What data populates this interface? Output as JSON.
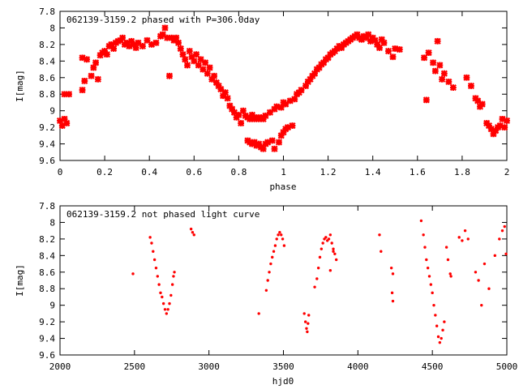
{
  "chart_data": [
    {
      "type": "scatter",
      "title": "062139-3159.2 phased with P=306.0day",
      "xlabel": "phase",
      "ylabel": "I[mag]",
      "xlim": [
        0,
        2
      ],
      "ylim": [
        7.8,
        9.6
      ],
      "y_inverted": true,
      "xticks": [
        "0",
        "0.2",
        "0.4",
        "0.6",
        "0.8",
        "1",
        "1.2",
        "1.4",
        "1.6",
        "1.8",
        "2"
      ],
      "yticks": [
        "7.8",
        "8",
        "8.2",
        "8.4",
        "8.6",
        "8.8",
        "9",
        "9.2",
        "9.4",
        "9.6"
      ],
      "marker_color": "#ff0000",
      "marker": "filled-star",
      "points": [
        [
          0.0,
          9.12
        ],
        [
          0.01,
          9.18
        ],
        [
          0.02,
          9.1
        ],
        [
          0.03,
          9.15
        ],
        [
          0.02,
          8.8
        ],
        [
          0.04,
          8.8
        ],
        [
          0.1,
          8.75
        ],
        [
          0.11,
          8.64
        ],
        [
          0.1,
          8.36
        ],
        [
          0.12,
          8.38
        ],
        [
          0.14,
          8.58
        ],
        [
          0.15,
          8.48
        ],
        [
          0.17,
          8.62
        ],
        [
          0.16,
          8.42
        ],
        [
          0.18,
          8.33
        ],
        [
          0.19,
          8.3
        ],
        [
          0.2,
          8.28
        ],
        [
          0.21,
          8.32
        ],
        [
          0.22,
          8.22
        ],
        [
          0.23,
          8.2
        ],
        [
          0.24,
          8.25
        ],
        [
          0.25,
          8.18
        ],
        [
          0.26,
          8.16
        ],
        [
          0.27,
          8.15
        ],
        [
          0.28,
          8.12
        ],
        [
          0.29,
          8.2
        ],
        [
          0.3,
          8.18
        ],
        [
          0.31,
          8.22
        ],
        [
          0.32,
          8.16
        ],
        [
          0.33,
          8.2
        ],
        [
          0.34,
          8.24
        ],
        [
          0.35,
          8.18
        ],
        [
          0.37,
          8.22
        ],
        [
          0.39,
          8.15
        ],
        [
          0.41,
          8.2
        ],
        [
          0.43,
          8.18
        ],
        [
          0.45,
          8.1
        ],
        [
          0.46,
          8.08
        ],
        [
          0.47,
          8.0
        ],
        [
          0.48,
          8.12
        ],
        [
          0.49,
          8.58
        ],
        [
          0.5,
          8.12
        ],
        [
          0.51,
          8.15
        ],
        [
          0.52,
          8.12
        ],
        [
          0.53,
          8.18
        ],
        [
          0.54,
          8.25
        ],
        [
          0.55,
          8.32
        ],
        [
          0.56,
          8.38
        ],
        [
          0.57,
          8.45
        ],
        [
          0.58,
          8.28
        ],
        [
          0.59,
          8.35
        ],
        [
          0.6,
          8.4
        ],
        [
          0.61,
          8.32
        ],
        [
          0.62,
          8.45
        ],
        [
          0.63,
          8.38
        ],
        [
          0.64,
          8.5
        ],
        [
          0.65,
          8.42
        ],
        [
          0.66,
          8.55
        ],
        [
          0.67,
          8.48
        ],
        [
          0.68,
          8.62
        ],
        [
          0.69,
          8.58
        ],
        [
          0.7,
          8.66
        ],
        [
          0.71,
          8.7
        ],
        [
          0.72,
          8.74
        ],
        [
          0.73,
          8.82
        ],
        [
          0.74,
          8.78
        ],
        [
          0.75,
          8.85
        ],
        [
          0.76,
          8.94
        ],
        [
          0.77,
          8.98
        ],
        [
          0.78,
          9.02
        ],
        [
          0.79,
          9.08
        ],
        [
          0.8,
          9.05
        ],
        [
          0.81,
          9.15
        ],
        [
          0.82,
          9.0
        ],
        [
          0.83,
          9.06
        ],
        [
          0.84,
          9.08
        ],
        [
          0.85,
          9.1
        ],
        [
          0.86,
          9.05
        ],
        [
          0.87,
          9.1
        ],
        [
          0.88,
          9.08
        ],
        [
          0.89,
          9.1
        ],
        [
          0.9,
          9.08
        ],
        [
          0.91,
          9.1
        ],
        [
          0.92,
          9.06
        ],
        [
          0.84,
          9.36
        ],
        [
          0.85,
          9.38
        ],
        [
          0.86,
          9.4
        ],
        [
          0.87,
          9.38
        ],
        [
          0.88,
          9.42
        ],
        [
          0.89,
          9.4
        ],
        [
          0.9,
          9.44
        ],
        [
          0.91,
          9.46
        ],
        [
          0.92,
          9.4
        ],
        [
          0.93,
          9.38
        ],
        [
          0.95,
          9.36
        ],
        [
          0.96,
          9.46
        ],
        [
          0.98,
          9.38
        ],
        [
          0.99,
          9.3
        ],
        [
          1.0,
          9.26
        ],
        [
          1.01,
          9.22
        ],
        [
          1.02,
          9.2
        ],
        [
          1.04,
          9.18
        ],
        [
          0.94,
          9.02
        ],
        [
          0.96,
          8.98
        ],
        [
          0.97,
          8.95
        ],
        [
          0.99,
          8.96
        ],
        [
          1.0,
          8.9
        ],
        [
          1.01,
          8.92
        ],
        [
          1.03,
          8.88
        ],
        [
          1.05,
          8.86
        ],
        [
          1.06,
          8.8
        ],
        [
          1.07,
          8.78
        ],
        [
          1.08,
          8.75
        ],
        [
          1.1,
          8.7
        ],
        [
          1.11,
          8.65
        ],
        [
          1.12,
          8.62
        ],
        [
          1.13,
          8.58
        ],
        [
          1.14,
          8.55
        ],
        [
          1.15,
          8.5
        ],
        [
          1.16,
          8.48
        ],
        [
          1.17,
          8.44
        ],
        [
          1.18,
          8.42
        ],
        [
          1.19,
          8.38
        ],
        [
          1.2,
          8.36
        ],
        [
          1.21,
          8.32
        ],
        [
          1.22,
          8.3
        ],
        [
          1.23,
          8.28
        ],
        [
          1.24,
          8.25
        ],
        [
          1.25,
          8.22
        ],
        [
          1.26,
          8.24
        ],
        [
          1.27,
          8.2
        ],
        [
          1.28,
          8.18
        ],
        [
          1.29,
          8.16
        ],
        [
          1.3,
          8.14
        ],
        [
          1.31,
          8.12
        ],
        [
          1.32,
          8.1
        ],
        [
          1.33,
          8.08
        ],
        [
          1.34,
          8.12
        ],
        [
          1.35,
          8.14
        ],
        [
          1.36,
          8.1
        ],
        [
          1.37,
          8.12
        ],
        [
          1.38,
          8.08
        ],
        [
          1.39,
          8.16
        ],
        [
          1.4,
          8.12
        ],
        [
          1.41,
          8.15
        ],
        [
          1.42,
          8.2
        ],
        [
          1.43,
          8.24
        ],
        [
          1.44,
          8.14
        ],
        [
          1.45,
          8.18
        ],
        [
          1.47,
          8.28
        ],
        [
          1.49,
          8.35
        ],
        [
          1.5,
          8.25
        ],
        [
          1.52,
          8.26
        ],
        [
          1.63,
          8.36
        ],
        [
          1.64,
          8.87
        ],
        [
          1.65,
          8.3
        ],
        [
          1.67,
          8.42
        ],
        [
          1.68,
          8.52
        ],
        [
          1.69,
          8.16
        ],
        [
          1.7,
          8.45
        ],
        [
          1.71,
          8.62
        ],
        [
          1.72,
          8.55
        ],
        [
          1.74,
          8.65
        ],
        [
          1.76,
          8.72
        ],
        [
          1.82,
          8.6
        ],
        [
          1.84,
          8.7
        ],
        [
          1.86,
          8.85
        ],
        [
          1.87,
          8.88
        ],
        [
          1.88,
          8.95
        ],
        [
          1.89,
          8.92
        ],
        [
          1.91,
          9.15
        ],
        [
          1.92,
          9.18
        ],
        [
          1.93,
          9.22
        ],
        [
          1.94,
          9.28
        ],
        [
          1.95,
          9.24
        ],
        [
          1.96,
          9.2
        ],
        [
          1.97,
          9.18
        ],
        [
          1.98,
          9.1
        ],
        [
          1.99,
          9.2
        ],
        [
          2.0,
          9.12
        ]
      ]
    },
    {
      "type": "scatter",
      "title": "062139-3159.2 not phased light curve",
      "xlabel": "hjd0",
      "ylabel": "I[mag]",
      "xlim": [
        2000,
        5000
      ],
      "ylim": [
        7.8,
        9.6
      ],
      "y_inverted": true,
      "xticks": [
        "2000",
        "2500",
        "3000",
        "3500",
        "4000",
        "4500",
        "5000"
      ],
      "yticks": [
        "7.8",
        "8",
        "8.2",
        "8.4",
        "8.6",
        "8.8",
        "9",
        "9.2",
        "9.4",
        "9.6"
      ],
      "marker_color": "#ff0000",
      "marker": "small-dot",
      "points": [
        [
          2490,
          8.62
        ],
        [
          2605,
          8.18
        ],
        [
          2615,
          8.25
        ],
        [
          2625,
          8.35
        ],
        [
          2635,
          8.45
        ],
        [
          2645,
          8.55
        ],
        [
          2655,
          8.65
        ],
        [
          2665,
          8.75
        ],
        [
          2675,
          8.85
        ],
        [
          2685,
          8.9
        ],
        [
          2695,
          8.98
        ],
        [
          2705,
          9.05
        ],
        [
          2715,
          9.1
        ],
        [
          2725,
          9.05
        ],
        [
          2735,
          8.98
        ],
        [
          2745,
          8.88
        ],
        [
          2755,
          8.75
        ],
        [
          2762,
          8.65
        ],
        [
          2768,
          8.6
        ],
        [
          2880,
          8.08
        ],
        [
          2890,
          8.12
        ],
        [
          2900,
          8.15
        ],
        [
          3335,
          9.1
        ],
        [
          3385,
          8.82
        ],
        [
          3395,
          8.7
        ],
        [
          3405,
          8.6
        ],
        [
          3415,
          8.5
        ],
        [
          3425,
          8.42
        ],
        [
          3435,
          8.35
        ],
        [
          3445,
          8.28
        ],
        [
          3455,
          8.2
        ],
        [
          3465,
          8.15
        ],
        [
          3475,
          8.12
        ],
        [
          3485,
          8.15
        ],
        [
          3495,
          8.2
        ],
        [
          3505,
          8.28
        ],
        [
          3640,
          9.1
        ],
        [
          3648,
          9.2
        ],
        [
          3655,
          9.28
        ],
        [
          3660,
          9.32
        ],
        [
          3665,
          9.22
        ],
        [
          3670,
          9.12
        ],
        [
          3710,
          8.78
        ],
        [
          3725,
          8.68
        ],
        [
          3735,
          8.55
        ],
        [
          3745,
          8.42
        ],
        [
          3755,
          8.32
        ],
        [
          3765,
          8.25
        ],
        [
          3775,
          8.2
        ],
        [
          3785,
          8.18
        ],
        [
          3795,
          8.22
        ],
        [
          3805,
          8.2
        ],
        [
          3815,
          8.15
        ],
        [
          3825,
          8.25
        ],
        [
          3835,
          8.32
        ],
        [
          3845,
          8.38
        ],
        [
          3855,
          8.45
        ],
        [
          3815,
          8.58
        ],
        [
          3835,
          8.35
        ],
        [
          4145,
          8.15
        ],
        [
          4155,
          8.35
        ],
        [
          4225,
          8.55
        ],
        [
          4235,
          8.62
        ],
        [
          4230,
          8.85
        ],
        [
          4235,
          8.95
        ],
        [
          4425,
          7.98
        ],
        [
          4440,
          8.15
        ],
        [
          4450,
          8.3
        ],
        [
          4460,
          8.45
        ],
        [
          4470,
          8.55
        ],
        [
          4480,
          8.65
        ],
        [
          4490,
          8.75
        ],
        [
          4500,
          8.85
        ],
        [
          4510,
          9.0
        ],
        [
          4520,
          9.12
        ],
        [
          4530,
          9.25
        ],
        [
          4540,
          9.38
        ],
        [
          4550,
          9.45
        ],
        [
          4560,
          9.4
        ],
        [
          4570,
          9.3
        ],
        [
          4580,
          9.2
        ],
        [
          4595,
          8.3
        ],
        [
          4605,
          8.45
        ],
        [
          4620,
          8.62
        ],
        [
          4625,
          8.65
        ],
        [
          4680,
          8.18
        ],
        [
          4700,
          8.22
        ],
        [
          4720,
          8.1
        ],
        [
          4740,
          8.2
        ],
        [
          4790,
          8.6
        ],
        [
          4810,
          8.7
        ],
        [
          4830,
          9.0
        ],
        [
          4850,
          8.5
        ],
        [
          4880,
          8.8
        ],
        [
          4920,
          8.4
        ],
        [
          4950,
          8.2
        ],
        [
          4970,
          8.1
        ],
        [
          4985,
          8.05
        ],
        [
          4995,
          8.38
        ]
      ]
    }
  ]
}
